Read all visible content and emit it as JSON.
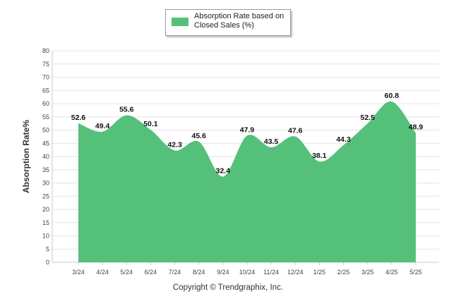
{
  "chart_data": {
    "type": "area",
    "categories": [
      "3/24",
      "4/24",
      "5/24",
      "6/24",
      "7/24",
      "8/24",
      "9/24",
      "10/24",
      "11/24",
      "12/24",
      "1/25",
      "2/25",
      "3/25",
      "4/25",
      "5/25"
    ],
    "series": [
      {
        "name": "Absorption Rate based on Closed Sales (%)",
        "values": [
          52.6,
          49.4,
          55.6,
          50.1,
          42.3,
          45.6,
          32.4,
          47.9,
          43.5,
          47.6,
          38.1,
          44.3,
          52.5,
          60.8,
          48.9
        ]
      }
    ],
    "data_labels": [
      "52.6",
      "49.4",
      "55.6",
      "50.1",
      "42.3",
      "45.6",
      "32.4",
      "47.9",
      "43.5",
      "47.6",
      "38.1",
      "44.3",
      "52.5",
      "60.8",
      "48.9"
    ],
    "ylabel": "Absorption Rate%",
    "xlabel": "",
    "ylim": [
      0,
      80
    ],
    "y_ticks": [
      "0",
      "5",
      "10",
      "15",
      "20",
      "25",
      "30",
      "35",
      "40",
      "45",
      "50",
      "55",
      "60",
      "65",
      "70",
      "75",
      "80"
    ],
    "grid": true,
    "legend_position": "top-center",
    "colors": {
      "area": "#55c07a",
      "grid": "#e4e4e4",
      "axis": "#c8c8c8"
    }
  },
  "legend": {
    "label": "Absorption Rate based on Closed Sales (%)"
  },
  "footer": {
    "copyright": "Copyright © Trendgraphix, Inc."
  }
}
